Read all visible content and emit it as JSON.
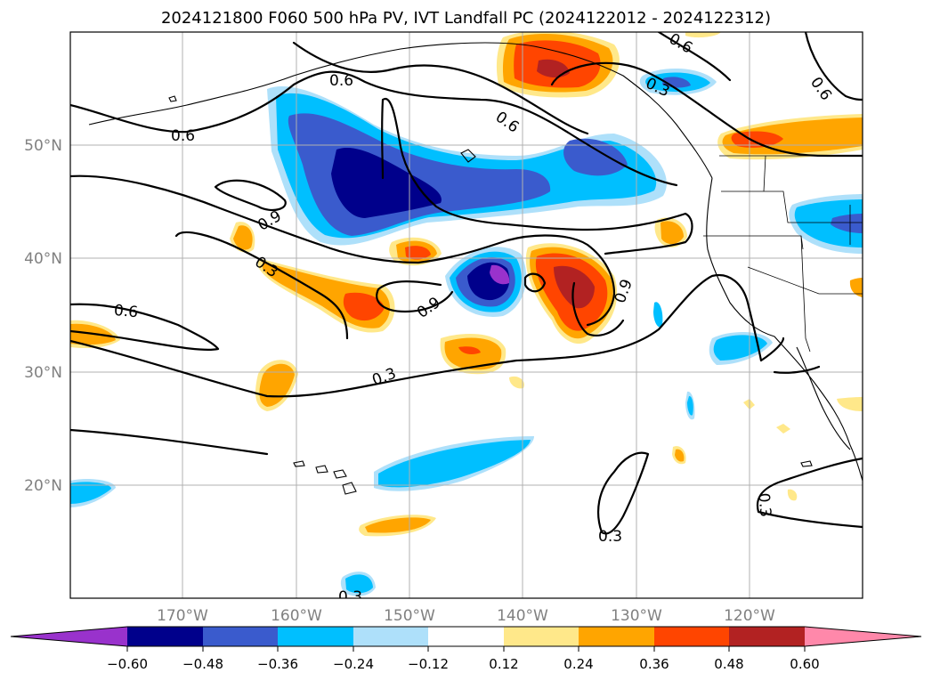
{
  "title": "2024121800 F060 500 hPa PV, IVT Landfall PC (2024122012 - 2024122312)",
  "lat_labels": [
    "50°N",
    "40°N",
    "30°N",
    "20°N"
  ],
  "lon_labels": [
    "170°W",
    "160°W",
    "150°W",
    "140°W",
    "130°W",
    "120°W"
  ],
  "contour_labels": [
    "0.6",
    "0.6",
    "0.6",
    "0.3",
    "0.6",
    "0.6",
    "0.9",
    "0.3",
    "0.6",
    "0.9",
    "0.9",
    "0.3",
    "0.3",
    "0.3",
    "0.3"
  ],
  "colorbar": {
    "ticks": [
      "−0.60",
      "−0.48",
      "−0.36",
      "−0.24",
      "−0.12",
      "0.12",
      "0.24",
      "0.36",
      "0.48",
      "0.60"
    ],
    "colors": {
      "neg_extend": "#9932cc",
      "neg_060": "#00008b",
      "neg_048": "#3a5bcd",
      "neg_036": "#00bfff",
      "neg_024": "#aee0fa",
      "neutral": "#ffffff",
      "pos_012": "#ffe88a",
      "pos_024": "#ffa500",
      "pos_036": "#ff4500",
      "pos_048": "#b22222",
      "pos_extend": "#ff88aa"
    }
  }
}
